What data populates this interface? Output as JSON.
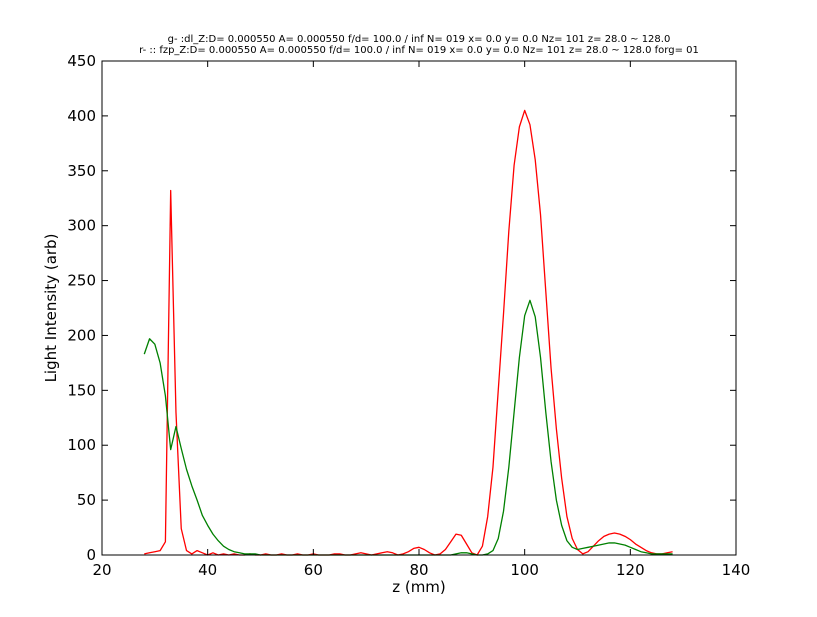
{
  "chart_data": {
    "type": "line",
    "title_lines": [
      "g- :dl_Z:D= 0.000550 A= 0.000550 f/d= 100.0 / inf N= 019 x= 0.0 y= 0.0 Nz= 101 z= 28.0 ~ 128.0",
      "r- :: fzp_Z:D= 0.000550 A= 0.000550 f/d= 100.0 / inf N= 019 x= 0.0 y= 0.0 Nz= 101 z= 28.0 ~ 128.0 forg= 01"
    ],
    "xlabel": "z (mm)",
    "ylabel": "Light Intensity (arb)",
    "xlim": [
      20,
      140
    ],
    "ylim": [
      0,
      450
    ],
    "xticks": [
      20,
      40,
      60,
      80,
      100,
      120,
      140
    ],
    "yticks": [
      0,
      50,
      100,
      150,
      200,
      250,
      300,
      350,
      400,
      450
    ],
    "grid": false,
    "series": [
      {
        "color": "#ff0000",
        "x": [
          28,
          29,
          30,
          31,
          32,
          33,
          34,
          35,
          36,
          37,
          38,
          39,
          40,
          41,
          42,
          43,
          44,
          45,
          46,
          47,
          48,
          49,
          50,
          51,
          52,
          53,
          54,
          55,
          56,
          57,
          58,
          59,
          60,
          61,
          62,
          63,
          64,
          65,
          66,
          67,
          68,
          69,
          70,
          71,
          72,
          73,
          74,
          75,
          76,
          77,
          78,
          79,
          80,
          81,
          82,
          83,
          84,
          85,
          86,
          87,
          88,
          89,
          90,
          91,
          92,
          93,
          94,
          95,
          96,
          97,
          98,
          99,
          100,
          101,
          102,
          103,
          104,
          105,
          106,
          107,
          108,
          109,
          110,
          111,
          112,
          113,
          114,
          115,
          116,
          117,
          118,
          119,
          120,
          121,
          122,
          123,
          124,
          125,
          126,
          127,
          128
        ],
        "y": [
          1,
          2,
          3,
          4,
          12,
          332,
          130,
          24,
          4,
          1,
          4,
          2,
          0,
          2,
          0,
          1,
          0,
          1,
          0,
          0,
          1,
          0,
          0,
          1,
          0,
          0,
          1,
          0,
          0,
          1,
          0,
          0,
          1,
          0,
          0,
          0,
          1,
          1,
          0,
          0,
          1,
          2,
          1,
          0,
          1,
          2,
          3,
          2,
          0,
          1,
          3,
          6,
          7,
          5,
          2,
          0,
          1,
          5,
          12,
          19,
          18,
          10,
          2,
          0,
          8,
          35,
          80,
          150,
          220,
          295,
          355,
          390,
          405,
          392,
          360,
          310,
          240,
          170,
          115,
          70,
          35,
          15,
          5,
          1,
          3,
          8,
          13,
          17,
          19,
          20,
          19,
          17,
          14,
          10,
          7,
          4,
          2,
          1,
          1,
          2,
          3
        ]
      },
      {
        "color": "#008000",
        "x": [
          28,
          29,
          30,
          31,
          32,
          33,
          34,
          35,
          36,
          37,
          38,
          39,
          40,
          41,
          42,
          43,
          44,
          45,
          46,
          47,
          48,
          49,
          50,
          51,
          52,
          53,
          54,
          55,
          56,
          57,
          58,
          59,
          60,
          61,
          62,
          63,
          64,
          65,
          66,
          67,
          68,
          69,
          70,
          71,
          72,
          73,
          74,
          75,
          76,
          77,
          78,
          79,
          80,
          81,
          82,
          83,
          84,
          85,
          86,
          87,
          88,
          89,
          90,
          91,
          92,
          93,
          94,
          95,
          96,
          97,
          98,
          99,
          100,
          101,
          102,
          103,
          104,
          105,
          106,
          107,
          108,
          109,
          110,
          111,
          112,
          113,
          114,
          115,
          116,
          117,
          118,
          119,
          120,
          121,
          122,
          123,
          124,
          125,
          126,
          127,
          128
        ],
        "y": [
          183,
          197,
          192,
          175,
          145,
          96,
          117,
          97,
          78,
          63,
          50,
          36,
          27,
          19,
          13,
          8,
          5,
          3,
          2,
          1,
          1,
          1,
          0,
          0,
          0,
          0,
          0,
          0,
          0,
          0,
          0,
          0,
          0,
          0,
          0,
          0,
          0,
          0,
          0,
          0,
          0,
          0,
          0,
          0,
          0,
          0,
          0,
          0,
          0,
          0,
          0,
          0,
          0,
          0,
          0,
          0,
          0,
          0,
          0,
          1,
          2,
          2,
          1,
          0,
          0,
          1,
          4,
          15,
          40,
          80,
          130,
          180,
          218,
          232,
          217,
          180,
          130,
          85,
          50,
          27,
          13,
          7,
          5,
          6,
          7,
          8,
          9,
          10,
          11,
          11,
          10,
          9,
          7,
          5,
          3,
          2,
          1,
          1,
          1,
          1,
          1
        ]
      }
    ]
  }
}
